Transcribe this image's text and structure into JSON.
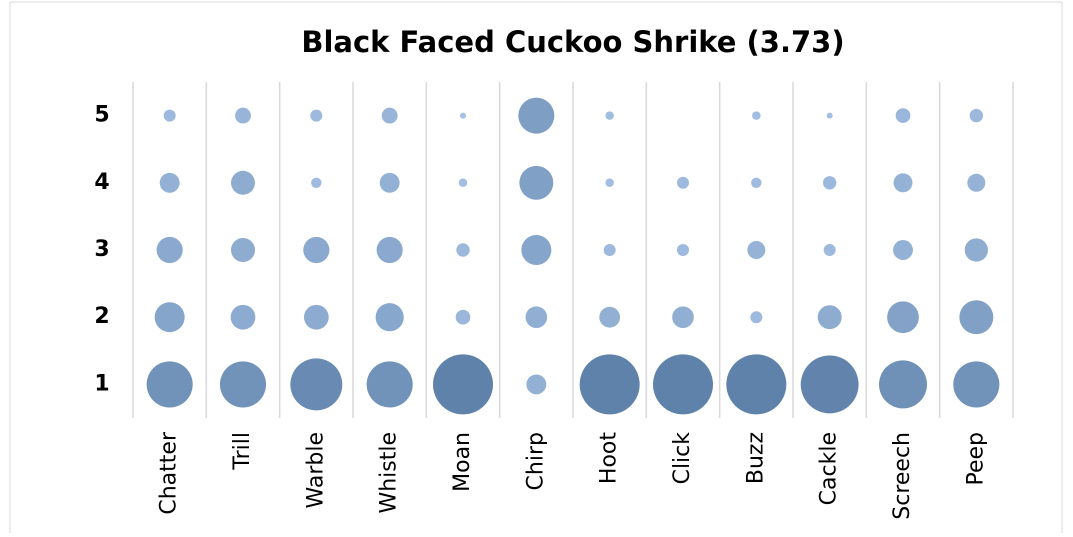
{
  "chart_data": {
    "type": "bubble",
    "title": "Black Faced Cuckoo Shrike (3.73)",
    "categories": [
      "Chatter",
      "Trill",
      "Warble",
      "Whistle",
      "Moan",
      "Chirp",
      "Hoot",
      "Click",
      "Buzz",
      "Cackle",
      "Screech",
      "Peep"
    ],
    "rows": [
      {
        "y": 1,
        "sizes": [
          59,
          59,
          75,
          59,
          100,
          11,
          100,
          100,
          100,
          93,
          64,
          59
        ]
      },
      {
        "y": 2,
        "sizes": [
          25,
          17,
          17,
          22,
          6,
          13,
          12,
          13,
          4,
          16,
          28,
          32
        ]
      },
      {
        "y": 3,
        "sizes": [
          19,
          16,
          19,
          19,
          5,
          25,
          4,
          4,
          9,
          4,
          11,
          15
        ]
      },
      {
        "y": 4,
        "sizes": [
          11,
          16,
          3,
          11,
          2,
          32,
          2,
          4,
          3,
          5,
          10,
          9
        ]
      },
      {
        "y": 5,
        "sizes": [
          4,
          7,
          4,
          7,
          1,
          36,
          2,
          0,
          2,
          1,
          6,
          5
        ]
      }
    ],
    "ylim": [
      0.5,
      5.5
    ],
    "yticks": [
      1,
      2,
      3,
      4,
      5
    ],
    "grid": true,
    "color_small": "#adc7ea",
    "color_large": "#5f82aa"
  }
}
